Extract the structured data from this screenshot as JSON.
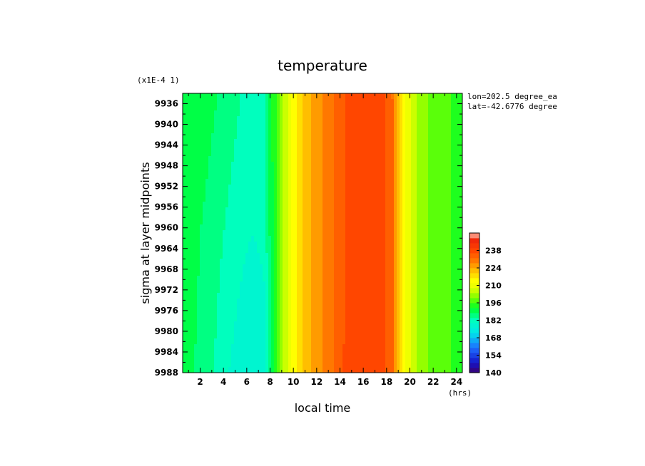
{
  "chart_data": {
    "type": "heatmap",
    "title": "temperature",
    "xlabel": "local time",
    "ylabel": "sigma at layer midpoints",
    "x_unit": "(hrs)",
    "y_scale_note": "(x1E-4 1)",
    "annotations": [
      "lon=202.5 degree_ea",
      "lat=-42.6776 degree"
    ],
    "xlim": [
      0.5,
      24.5
    ],
    "ylim": [
      9934,
      9988
    ],
    "y_inverted": true,
    "x_ticks": [
      2,
      4,
      6,
      8,
      10,
      12,
      14,
      16,
      18,
      20,
      22,
      24
    ],
    "y_ticks": [
      9936,
      9940,
      9944,
      9948,
      9952,
      9956,
      9960,
      9964,
      9968,
      9972,
      9976,
      9980,
      9984,
      9988
    ],
    "x_hours": [
      0.5,
      1.5,
      2.5,
      3.5,
      4.5,
      5.5,
      6.5,
      7.5,
      8.5,
      9.5,
      10.5,
      11.5,
      12.5,
      13.5,
      14.5,
      15.5,
      16.5,
      17.5,
      18.5,
      19.5,
      20.5,
      21.5,
      22.5,
      23.5,
      24.5
    ],
    "y_levels": [
      9934,
      9961,
      9988
    ],
    "values": [
      [
        192,
        191,
        190,
        188,
        186,
        184,
        183,
        183,
        196,
        208,
        218,
        224,
        228,
        232,
        236,
        238,
        238,
        238,
        232,
        214,
        204,
        200,
        198,
        196,
        194
      ],
      [
        191,
        189,
        187,
        185,
        183,
        181,
        180,
        181,
        196,
        208,
        218,
        224,
        228,
        232,
        236,
        239,
        239,
        238,
        232,
        214,
        204,
        200,
        198,
        196,
        194
      ],
      [
        190,
        188,
        186,
        183,
        180,
        178,
        177,
        178,
        196,
        208,
        218,
        224,
        228,
        232,
        237,
        240,
        240,
        239,
        232,
        214,
        204,
        200,
        198,
        196,
        194
      ]
    ],
    "colorbar": {
      "ticks": [
        140,
        154,
        168,
        182,
        196,
        210,
        224,
        238
      ],
      "min": 140,
      "max": 252,
      "step": 4
    }
  }
}
